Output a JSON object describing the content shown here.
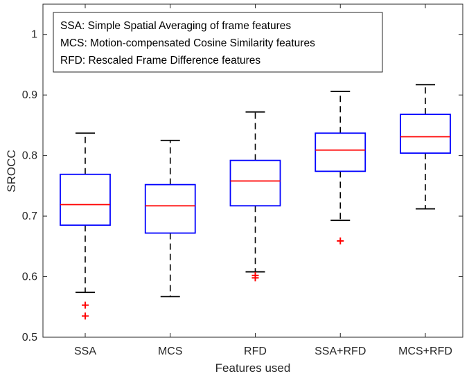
{
  "chart_data": {
    "type": "box",
    "xlabel": "Features used",
    "ylabel": "SROCC",
    "ylim": [
      0.5,
      1.05
    ],
    "yticks": [
      0.5,
      0.6,
      0.7,
      0.8,
      0.9,
      1
    ],
    "ytick_labels": [
      "0.5",
      "0.6",
      "0.7",
      "0.8",
      "0.9",
      "1"
    ],
    "categories": [
      "SSA",
      "MCS",
      "RFD",
      "SSA+RFD",
      "MCS+RFD"
    ],
    "boxes": [
      {
        "whisker_low": 0.574,
        "q1": 0.685,
        "median": 0.719,
        "q3": 0.769,
        "whisker_high": 0.837,
        "outliers": [
          0.553,
          0.535
        ]
      },
      {
        "whisker_low": 0.567,
        "q1": 0.672,
        "median": 0.717,
        "q3": 0.752,
        "whisker_high": 0.825,
        "outliers": []
      },
      {
        "whisker_low": 0.608,
        "q1": 0.717,
        "median": 0.758,
        "q3": 0.792,
        "whisker_high": 0.872,
        "outliers": [
          0.602,
          0.598
        ]
      },
      {
        "whisker_low": 0.693,
        "q1": 0.774,
        "median": 0.809,
        "q3": 0.837,
        "whisker_high": 0.906,
        "outliers": [
          0.659
        ]
      },
      {
        "whisker_low": 0.712,
        "q1": 0.804,
        "median": 0.831,
        "q3": 0.868,
        "whisker_high": 0.917,
        "outliers": []
      }
    ],
    "legend": {
      "placement": "top-left",
      "entries": [
        "SSA: Simple Spatial Averaging of frame features",
        "MCS: Motion-compensated Cosine Similarity features",
        "RFD: Rescaled Frame Difference features"
      ]
    },
    "colors": {
      "box": "#0000ff",
      "median": "#ff0000",
      "whisker": "#000000",
      "outlier": "#ff0000",
      "axes": "#262626"
    },
    "grid": false
  }
}
